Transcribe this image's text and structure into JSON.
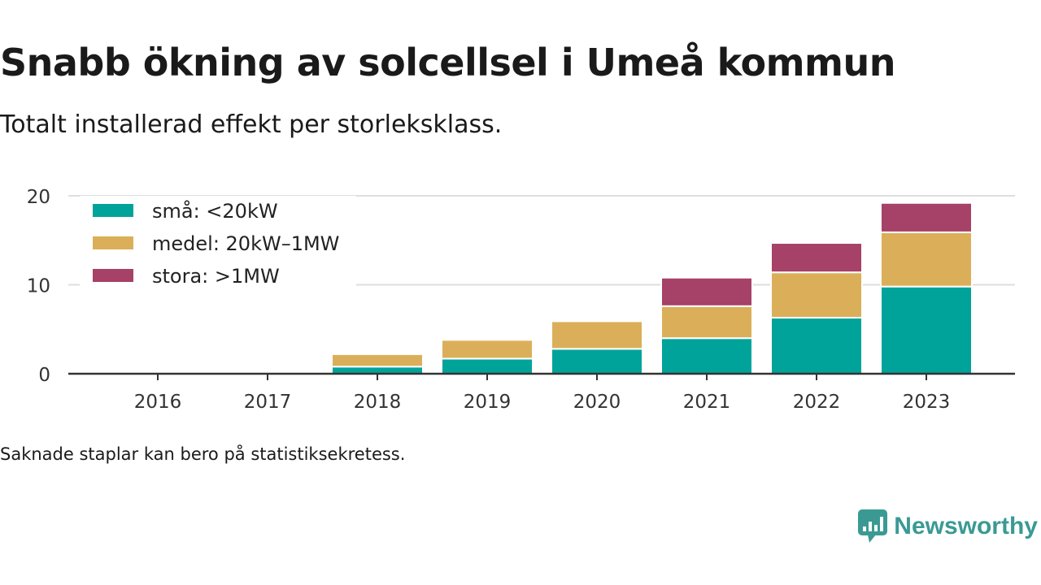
{
  "header": {
    "title": "Snabb ökning av solcellsel i Umeå kommun",
    "subtitle": "Totalt installerad effekt per storleksklass."
  },
  "footer": {
    "note": "Saknade staplar kan bero på statistiksekretess.",
    "brand": "Newsworthy"
  },
  "colors": {
    "small": "#00a39a",
    "medium": "#dbaf59",
    "large": "#a64167",
    "grid": "#dedede",
    "axis": "#333333"
  },
  "chart_data": {
    "type": "bar",
    "stacked": true,
    "categories": [
      "2016",
      "2017",
      "2018",
      "2019",
      "2020",
      "2021",
      "2022",
      "2023"
    ],
    "series": [
      {
        "name": "små: <20kW",
        "color": "#00a39a",
        "values": [
          0,
          0,
          0.8,
          1.7,
          2.8,
          4.0,
          6.3,
          9.8
        ]
      },
      {
        "name": "medel: 20kW–1MW",
        "color": "#dbaf59",
        "values": [
          0,
          0,
          1.4,
          2.1,
          3.1,
          3.6,
          5.1,
          6.1
        ]
      },
      {
        "name": "stora: >1MW",
        "color": "#a64167",
        "values": [
          0,
          0,
          0,
          0,
          0,
          3.2,
          3.3,
          3.3
        ]
      }
    ],
    "yticks": [
      0,
      10,
      20
    ],
    "ylim": [
      0,
      20
    ],
    "grid": true,
    "legend_position": "top-left"
  }
}
